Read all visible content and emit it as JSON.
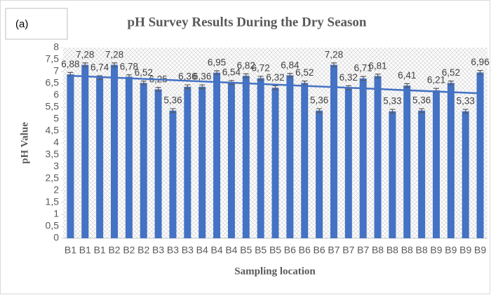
{
  "chart_data": {
    "type": "bar",
    "panel_label": "(a)",
    "title": "pH Survey Results During the Dry Season",
    "xlabel": "Sampling location",
    "ylabel": "pH Value",
    "categories": [
      "B1",
      "B1",
      "B1",
      "B2",
      "B2",
      "B2",
      "B3",
      "B3",
      "B3",
      "B4",
      "B4",
      "B4",
      "B5",
      "B5",
      "B5",
      "B6",
      "B6",
      "B6",
      "B7",
      "B7",
      "B7",
      "B8",
      "B8",
      "B8",
      "B8",
      "B9",
      "B9",
      "B9",
      "B9"
    ],
    "values": [
      6.88,
      7.28,
      6.74,
      7.28,
      6.78,
      6.52,
      6.25,
      5.36,
      6.36,
      6.36,
      6.95,
      6.54,
      6.82,
      6.72,
      6.32,
      6.84,
      6.52,
      5.36,
      7.28,
      6.32,
      6.71,
      6.81,
      5.33,
      6.41,
      5.36,
      6.21,
      6.52,
      5.33,
      6.96
    ],
    "value_labels": [
      "6,88",
      "7,28",
      "6,74",
      "7,28",
      "6,78",
      "6,52",
      "6,25",
      "5,36",
      "6,36",
      "6,36",
      "6,95",
      "6,54",
      "6,82",
      "6,72",
      "6,32",
      "6,84",
      "6,52",
      "5,36",
      "7,28",
      "6,32",
      "6,71",
      "6,81",
      "5,33",
      "6,41",
      "5,36",
      "6,21",
      "6,52",
      "5,33",
      "6,96"
    ],
    "error": 0.08,
    "trendline": [
      6.82,
      6.08
    ],
    "color": "#4472c4",
    "ylim": [
      0,
      8
    ],
    "yticks": [
      0,
      {
        "value": 0.5,
        "label": "0,5"
      },
      1,
      {
        "value": 1.5,
        "label": "1,5"
      },
      2,
      {
        "value": 2.5,
        "label": "2,5"
      },
      3,
      {
        "value": 3.5,
        "label": "3,5"
      },
      4,
      {
        "value": 4.5,
        "label": "4,5"
      },
      5,
      {
        "value": 5.5,
        "label": "5,5"
      },
      6,
      {
        "value": 6.5,
        "label": "6,5"
      },
      7,
      {
        "value": 7.5,
        "label": "7,5"
      },
      8
    ]
  }
}
